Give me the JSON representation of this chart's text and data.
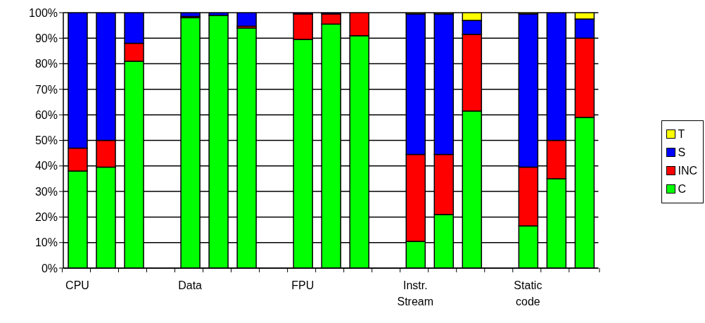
{
  "chart_data": {
    "type": "bar",
    "stacked": true,
    "categories": [
      "CPU",
      null,
      null,
      null,
      "Data",
      null,
      null,
      null,
      "FPU",
      null,
      null,
      null,
      "Instr.\nStream",
      null,
      null,
      null,
      "Static\ncode",
      null,
      null
    ],
    "series": [
      {
        "name": "C",
        "color": "#00ff00",
        "values": [
          38,
          39.5,
          81,
          null,
          98,
          99,
          94,
          null,
          89.5,
          95.5,
          91,
          null,
          10.5,
          21,
          61.5,
          null,
          16.5,
          35,
          59
        ]
      },
      {
        "name": "INC",
        "color": "#ff0000",
        "values": [
          9,
          10.5,
          7,
          null,
          0.5,
          0,
          0.7,
          null,
          10,
          4,
          9,
          null,
          34,
          23.5,
          30,
          null,
          23,
          15,
          31
        ]
      },
      {
        "name": "S",
        "color": "#0000ff",
        "values": [
          53,
          50,
          12,
          null,
          1.5,
          1,
          5.3,
          null,
          0.5,
          0.5,
          0,
          null,
          55,
          55,
          5.5,
          null,
          60,
          50,
          7.5
        ]
      },
      {
        "name": "T",
        "color": "#ffff00",
        "values": [
          0,
          0,
          0,
          null,
          0,
          0,
          0,
          null,
          0,
          0,
          0,
          null,
          0.5,
          0.5,
          3,
          null,
          0.5,
          0,
          2.5
        ]
      }
    ],
    "ylim": [
      0,
      100
    ],
    "yticks": [
      {
        "value": 0,
        "label": "0%"
      },
      {
        "value": 10,
        "label": "10%"
      },
      {
        "value": 20,
        "label": "20%"
      },
      {
        "value": 30,
        "label": "30%"
      },
      {
        "value": 40,
        "label": "40%"
      },
      {
        "value": 50,
        "label": "50%"
      },
      {
        "value": 60,
        "label": "60%"
      },
      {
        "value": 70,
        "label": "70%"
      },
      {
        "value": 80,
        "label": "80%"
      },
      {
        "value": 90,
        "label": "90%"
      },
      {
        "value": 100,
        "label": "100%"
      }
    ],
    "grid": "y",
    "legend": "right"
  }
}
